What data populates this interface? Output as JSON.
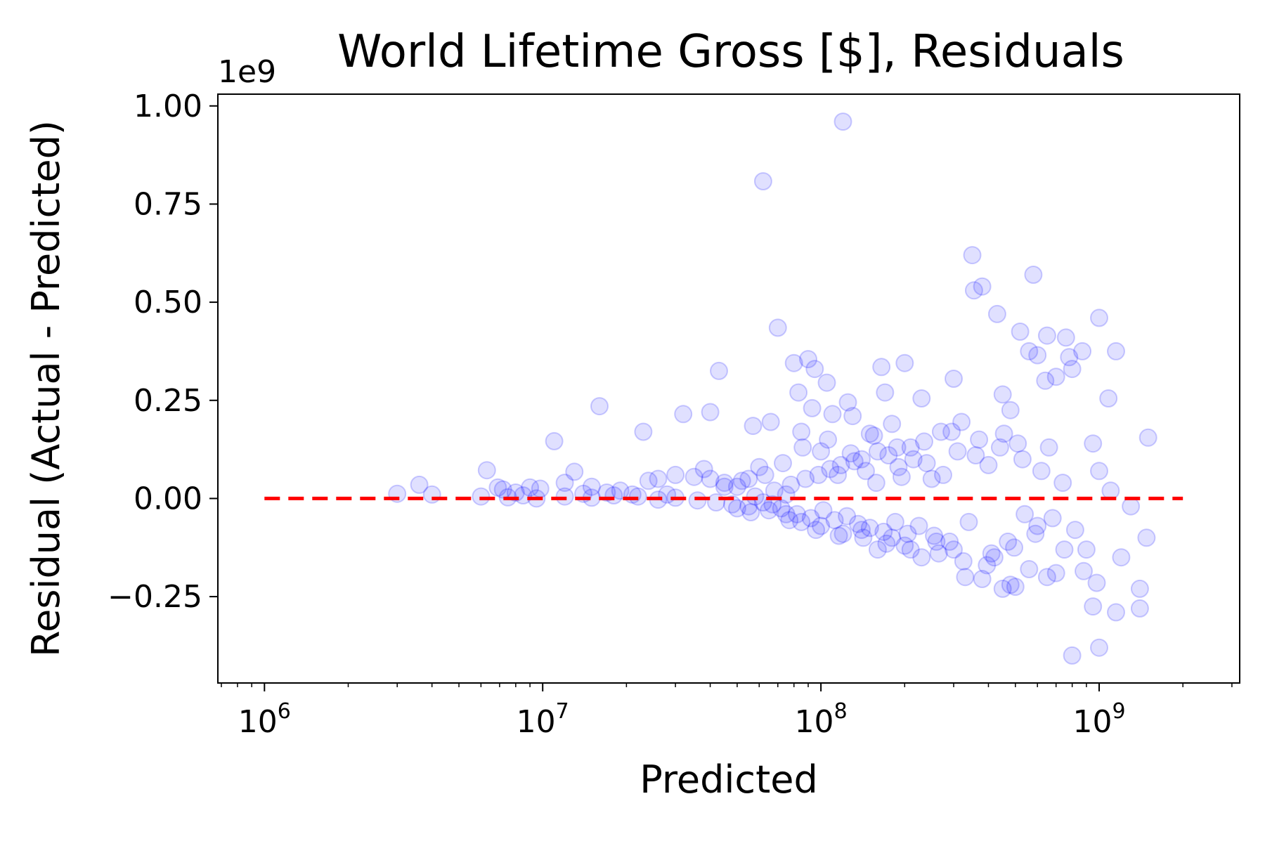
{
  "chart_data": {
    "type": "scatter",
    "title": "World Lifetime Gross [$], Residuals",
    "xlabel": "Predicted",
    "ylabel": "Residual (Actual - Predicted)",
    "x_scale": "log",
    "xlim": [
      680000,
      3200000000
    ],
    "ylim": [
      -470000000,
      1030000000
    ],
    "y_offset_label": "1e9",
    "x_ticks": [
      {
        "value": 1000000,
        "base": "10",
        "exp": "6"
      },
      {
        "value": 10000000,
        "base": "10",
        "exp": "7"
      },
      {
        "value": 100000000,
        "base": "10",
        "exp": "8"
      },
      {
        "value": 1000000000,
        "base": "10",
        "exp": "9"
      }
    ],
    "y_ticks": [
      {
        "value": -250000000,
        "label": "−0.25"
      },
      {
        "value": 0,
        "label": "0.00"
      },
      {
        "value": 250000000,
        "label": "0.25"
      },
      {
        "value": 500000000,
        "label": "0.50"
      },
      {
        "value": 750000000,
        "label": "0.75"
      },
      {
        "value": 1000000000,
        "label": "1.00"
      }
    ],
    "grid": false,
    "marker_color": "#0000ff",
    "marker_alpha": 0.12,
    "reference_line": {
      "x": [
        1000000,
        2000000000
      ],
      "y": 0,
      "color": "#ff0000",
      "style": "dashed"
    },
    "series": [
      {
        "points": [
          [
            3000000,
            12000000
          ],
          [
            3600000,
            35000000
          ],
          [
            4000000,
            10000000
          ],
          [
            6000000,
            5000000
          ],
          [
            6300000,
            72000000
          ],
          [
            6900000,
            28000000
          ],
          [
            7200000,
            23000000
          ],
          [
            8000000,
            15000000
          ],
          [
            9000000,
            28000000
          ],
          [
            9800000,
            25000000
          ],
          [
            11000000,
            146000000
          ],
          [
            12000000,
            40000000
          ],
          [
            13000000,
            68000000
          ],
          [
            14000000,
            12000000
          ],
          [
            15000000,
            30000000
          ],
          [
            16000000,
            235000000
          ],
          [
            17000000,
            15000000
          ],
          [
            19000000,
            20000000
          ],
          [
            21000000,
            10000000
          ],
          [
            23000000,
            170000000
          ],
          [
            24000000,
            45000000
          ],
          [
            26000000,
            50000000
          ],
          [
            28000000,
            10000000
          ],
          [
            30000000,
            60000000
          ],
          [
            32000000,
            215000000
          ],
          [
            35000000,
            55000000
          ],
          [
            38000000,
            75000000
          ],
          [
            40000000,
            220000000
          ],
          [
            43000000,
            325000000
          ],
          [
            45000000,
            40000000
          ],
          [
            50000000,
            30000000
          ],
          [
            55000000,
            50000000
          ],
          [
            57000000,
            185000000
          ],
          [
            60000000,
            80000000
          ],
          [
            62000000,
            808000000
          ],
          [
            66000000,
            195000000
          ],
          [
            70000000,
            435000000
          ],
          [
            75000000,
            10000000
          ],
          [
            80000000,
            345000000
          ],
          [
            83000000,
            270000000
          ],
          [
            85000000,
            170000000
          ],
          [
            90000000,
            355000000
          ],
          [
            93000000,
            230000000
          ],
          [
            95000000,
            330000000
          ],
          [
            100000000,
            120000000
          ],
          [
            105000000,
            295000000
          ],
          [
            110000000,
            215000000
          ],
          [
            115000000,
            60000000
          ],
          [
            120000000,
            960000000
          ],
          [
            125000000,
            245000000
          ],
          [
            130000000,
            210000000
          ],
          [
            140000000,
            100000000
          ],
          [
            150000000,
            165000000
          ],
          [
            160000000,
            120000000
          ],
          [
            165000000,
            335000000
          ],
          [
            170000000,
            270000000
          ],
          [
            180000000,
            190000000
          ],
          [
            190000000,
            80000000
          ],
          [
            200000000,
            345000000
          ],
          [
            210000000,
            130000000
          ],
          [
            230000000,
            255000000
          ],
          [
            250000000,
            50000000
          ],
          [
            270000000,
            170000000
          ],
          [
            300000000,
            305000000
          ],
          [
            320000000,
            195000000
          ],
          [
            350000000,
            620000000
          ],
          [
            355000000,
            530000000
          ],
          [
            380000000,
            540000000
          ],
          [
            400000000,
            85000000
          ],
          [
            430000000,
            470000000
          ],
          [
            450000000,
            265000000
          ],
          [
            480000000,
            225000000
          ],
          [
            520000000,
            425000000
          ],
          [
            560000000,
            375000000
          ],
          [
            580000000,
            570000000
          ],
          [
            600000000,
            365000000
          ],
          [
            640000000,
            300000000
          ],
          [
            650000000,
            415000000
          ],
          [
            700000000,
            310000000
          ],
          [
            760000000,
            410000000
          ],
          [
            780000000,
            360000000
          ],
          [
            800000000,
            330000000
          ],
          [
            870000000,
            375000000
          ],
          [
            950000000,
            140000000
          ],
          [
            1000000000,
            460000000
          ],
          [
            1080000000,
            255000000
          ],
          [
            1150000000,
            375000000
          ],
          [
            1500000000,
            155000000
          ],
          [
            1480000000,
            -100000000
          ],
          [
            1400000000,
            -230000000
          ],
          [
            1400000000,
            -280000000
          ],
          [
            1200000000,
            -150000000
          ],
          [
            1150000000,
            -290000000
          ],
          [
            1000000000,
            -380000000
          ],
          [
            980000000,
            -215000000
          ],
          [
            950000000,
            -275000000
          ],
          [
            900000000,
            -130000000
          ],
          [
            880000000,
            -185000000
          ],
          [
            800000000,
            -400000000
          ],
          [
            750000000,
            -130000000
          ],
          [
            700000000,
            -190000000
          ],
          [
            650000000,
            -200000000
          ],
          [
            600000000,
            -70000000
          ],
          [
            560000000,
            -180000000
          ],
          [
            500000000,
            -225000000
          ],
          [
            480000000,
            -220000000
          ],
          [
            450000000,
            -230000000
          ],
          [
            420000000,
            -150000000
          ],
          [
            380000000,
            -205000000
          ],
          [
            330000000,
            -200000000
          ],
          [
            300000000,
            -130000000
          ],
          [
            260000000,
            -110000000
          ],
          [
            230000000,
            -150000000
          ],
          [
            200000000,
            -120000000
          ],
          [
            180000000,
            -100000000
          ],
          [
            160000000,
            -130000000
          ],
          [
            140000000,
            -80000000
          ],
          [
            120000000,
            -90000000
          ],
          [
            100000000,
            -70000000
          ],
          [
            85000000,
            -60000000
          ],
          [
            75000000,
            -40000000
          ],
          [
            65000000,
            -30000000
          ],
          [
            55000000,
            -20000000
          ],
          [
            48000000,
            -15000000
          ],
          [
            42000000,
            -10000000
          ],
          [
            36000000,
            -5000000
          ],
          [
            30000000,
            2000000
          ],
          [
            26000000,
            -3000000
          ],
          [
            22000000,
            5000000
          ],
          [
            18000000,
            8000000
          ],
          [
            15000000,
            2000000
          ],
          [
            12000000,
            5000000
          ],
          [
            9500000,
            0
          ],
          [
            8500000,
            8000000
          ],
          [
            7500000,
            3000000
          ],
          [
            58000000,
            5000000
          ],
          [
            62000000,
            -10000000
          ],
          [
            68000000,
            20000000
          ],
          [
            72000000,
            -25000000
          ],
          [
            78000000,
            35000000
          ],
          [
            82000000,
            -40000000
          ],
          [
            88000000,
            50000000
          ],
          [
            92000000,
            -50000000
          ],
          [
            98000000,
            60000000
          ],
          [
            102000000,
            -30000000
          ],
          [
            108000000,
            75000000
          ],
          [
            112000000,
            -55000000
          ],
          [
            118000000,
            85000000
          ],
          [
            124000000,
            -45000000
          ],
          [
            132000000,
            95000000
          ],
          [
            136000000,
            -65000000
          ],
          [
            145000000,
            70000000
          ],
          [
            150000000,
            -75000000
          ],
          [
            158000000,
            40000000
          ],
          [
            168000000,
            -85000000
          ],
          [
            175000000,
            110000000
          ],
          [
            185000000,
            -60000000
          ],
          [
            195000000,
            55000000
          ],
          [
            205000000,
            -90000000
          ],
          [
            215000000,
            100000000
          ],
          [
            225000000,
            -70000000
          ],
          [
            240000000,
            90000000
          ],
          [
            255000000,
            -95000000
          ],
          [
            275000000,
            60000000
          ],
          [
            290000000,
            -110000000
          ],
          [
            310000000,
            120000000
          ],
          [
            340000000,
            -60000000
          ],
          [
            370000000,
            150000000
          ],
          [
            410000000,
            -140000000
          ],
          [
            440000000,
            130000000
          ],
          [
            470000000,
            -110000000
          ],
          [
            510000000,
            140000000
          ],
          [
            540000000,
            -40000000
          ],
          [
            620000000,
            70000000
          ],
          [
            680000000,
            -50000000
          ],
          [
            740000000,
            40000000
          ],
          [
            820000000,
            -80000000
          ],
          [
            1000000000,
            70000000
          ],
          [
            1100000000,
            20000000
          ],
          [
            1300000000,
            -20000000
          ],
          [
            40000000,
            50000000
          ],
          [
            45000000,
            30000000
          ],
          [
            50000000,
            -25000000
          ],
          [
            52000000,
            45000000
          ],
          [
            56000000,
            -35000000
          ],
          [
            63000000,
            60000000
          ],
          [
            67000000,
            -15000000
          ],
          [
            73000000,
            90000000
          ],
          [
            77000000,
            -55000000
          ],
          [
            86000000,
            130000000
          ],
          [
            96000000,
            -80000000
          ],
          [
            106000000,
            150000000
          ],
          [
            116000000,
            -95000000
          ],
          [
            128000000,
            115000000
          ],
          [
            142000000,
            -100000000
          ],
          [
            155000000,
            160000000
          ],
          [
            172000000,
            -115000000
          ],
          [
            188000000,
            130000000
          ],
          [
            210000000,
            -130000000
          ],
          [
            235000000,
            145000000
          ],
          [
            265000000,
            -140000000
          ],
          [
            295000000,
            170000000
          ],
          [
            325000000,
            -160000000
          ],
          [
            360000000,
            110000000
          ],
          [
            395000000,
            -170000000
          ],
          [
            455000000,
            165000000
          ],
          [
            495000000,
            -125000000
          ],
          [
            530000000,
            100000000
          ],
          [
            590000000,
            -90000000
          ],
          [
            660000000,
            130000000
          ]
        ]
      }
    ]
  }
}
